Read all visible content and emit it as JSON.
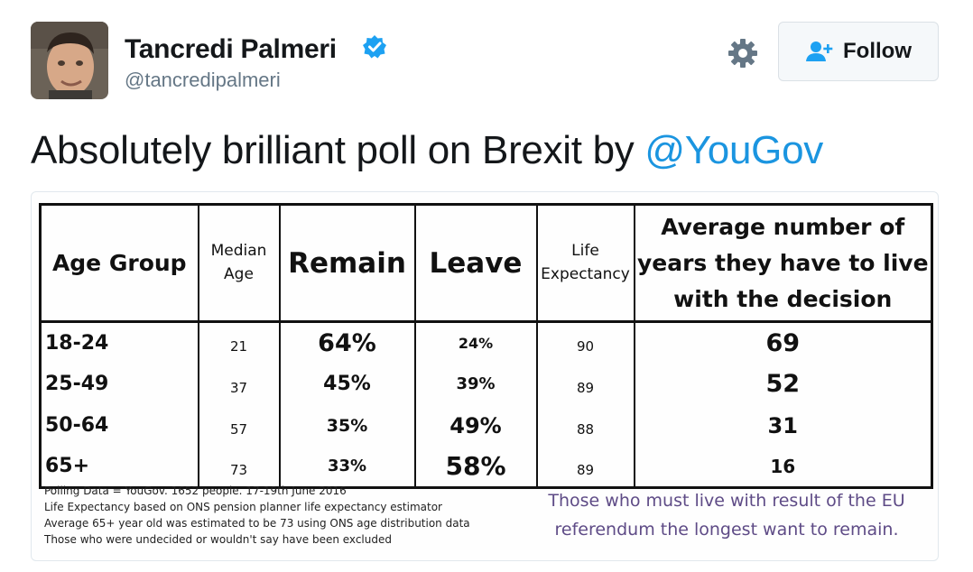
{
  "tweet": {
    "author_name": "Tancredi Palmeri",
    "author_handle": "@tancredipalmeri",
    "follow_label": "Follow",
    "text_before": "Absolutely brilliant poll on Brexit by ",
    "mention": "@YouGov"
  },
  "colors": {
    "mention": "#1b95e0",
    "verified": "#1da1f2",
    "remain": "#1f7a9e",
    "leave": "#c6161d",
    "conclusion": "#5e4b86"
  },
  "icons": [
    "verified-badge-icon",
    "gear-icon",
    "add-user-icon"
  ],
  "poll": {
    "headers": {
      "age_group": "Age Group",
      "median_age_1": "Median",
      "median_age_2": "Age",
      "remain": "Remain",
      "leave": "Leave",
      "life_1": "Life",
      "life_2": "Expectancy",
      "years_1": "Average number of",
      "years_2": "years they have to live",
      "years_3": "with the decision"
    },
    "rows": [
      {
        "age": "18-24",
        "median": "21",
        "remain": "64%",
        "leave": "24%",
        "life": "90",
        "years": "69"
      },
      {
        "age": "25-49",
        "median": "37",
        "remain": "45%",
        "leave": "39%",
        "life": "89",
        "years": "52"
      },
      {
        "age": "50-64",
        "median": "57",
        "remain": "35%",
        "leave": "49%",
        "life": "88",
        "years": "31"
      },
      {
        "age": "65+",
        "median": "73",
        "remain": "33%",
        "leave": "58%",
        "life": "89",
        "years": "16"
      }
    ],
    "notes": [
      "Polling Data = YouGov. 1652 people. 17-19th June 2016",
      "Life Expectancy based on ONS pension planner life expectancy estimator",
      "Average 65+ year old was estimated to be 73 using ONS age distribution data",
      "Those who were undecided or wouldn't say have been excluded"
    ],
    "conclusion_1": "Those who must live with result of the EU",
    "conclusion_2": "referendum the longest want to remain."
  }
}
